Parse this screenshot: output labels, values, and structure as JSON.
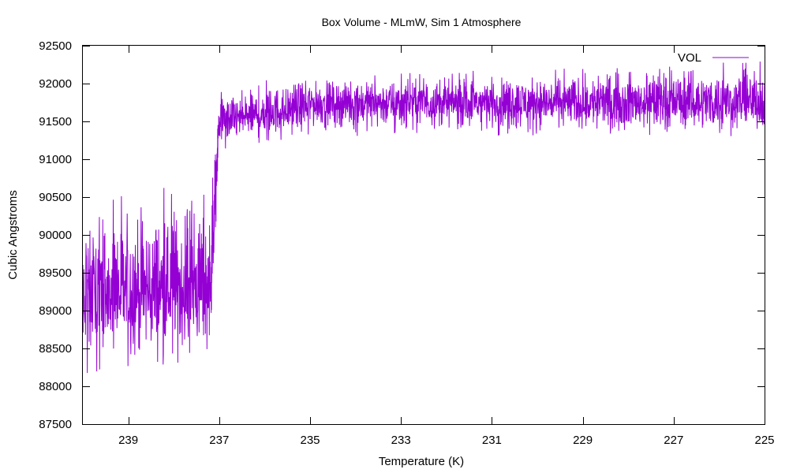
{
  "chart_data": {
    "type": "line",
    "title": "Box Volume - MLmW, Sim 1 Atmosphere",
    "xlabel": "Temperature (K)",
    "ylabel": "Cubic Angstroms",
    "xlim": [
      240.0,
      225.0
    ],
    "ylim": [
      87500,
      92500
    ],
    "x_ticks": [
      239,
      237,
      235,
      233,
      231,
      229,
      227,
      225
    ],
    "x_tick_labels": [
      "239",
      "237",
      "235",
      "233",
      "231",
      "229",
      "227",
      "225"
    ],
    "y_ticks": [
      87500,
      88000,
      88500,
      89000,
      89500,
      90000,
      90500,
      91000,
      91500,
      92000,
      92500
    ],
    "y_tick_labels": [
      "87500",
      "88000",
      "88500",
      "89000",
      "89500",
      "90000",
      "90500",
      "91000",
      "91500",
      "92000",
      "92500"
    ],
    "grid": false,
    "legend_position": "top-right",
    "series": [
      {
        "name": "VOL",
        "color": "#9400d3",
        "segments": [
          {
            "x": [
              240.0,
              237.2
            ],
            "mean": [
              89200,
              89300
            ],
            "low": [
              88000,
              88300
            ],
            "high": [
              90500,
              90700
            ]
          },
          {
            "x": [
              237.2,
              237.0
            ],
            "mean": [
              89300,
              91500
            ],
            "low": [
              88300,
              91100
            ],
            "high": [
              90700,
              91800
            ]
          },
          {
            "x": [
              237.0,
              235.0
            ],
            "mean": [
              91500,
              91700
            ],
            "low": [
              91100,
              91300
            ],
            "high": [
              91900,
              92200
            ]
          },
          {
            "x": [
              235.0,
              225.0
            ],
            "mean": [
              91750,
              91750
            ],
            "low": [
              91300,
              91300
            ],
            "high": [
              92100,
              92300
            ]
          }
        ]
      }
    ]
  }
}
